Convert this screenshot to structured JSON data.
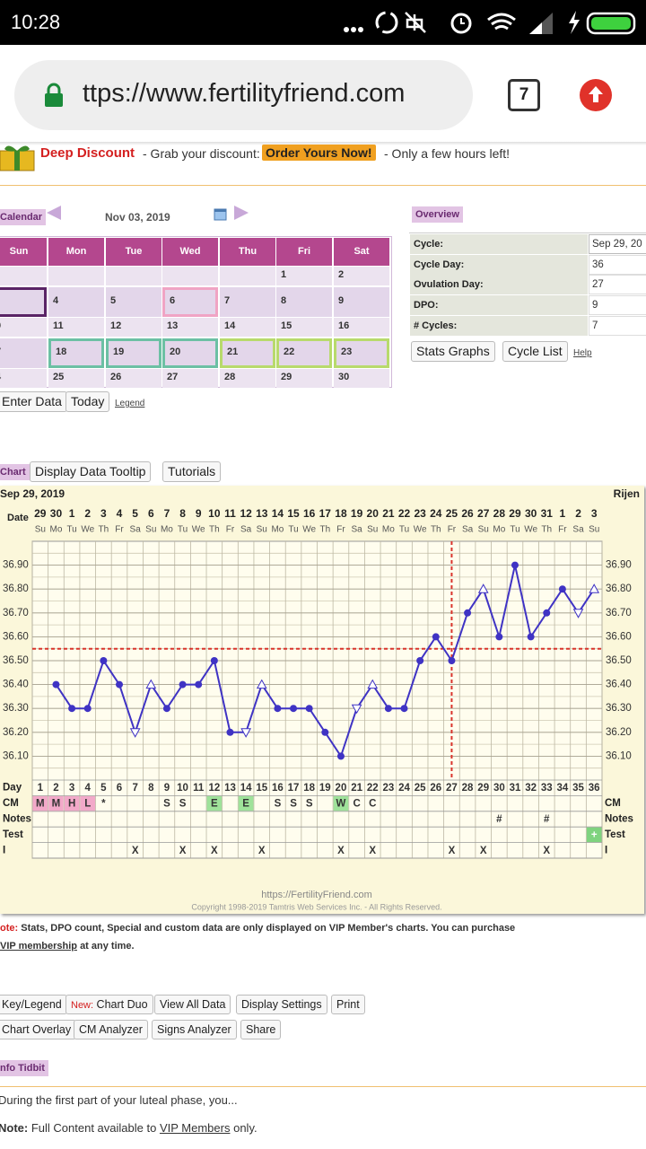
{
  "status_bar": {
    "time": "10:28"
  },
  "browser": {
    "url": "ttps://www.fertilityfriend.com",
    "tab_count": "7"
  },
  "banner": {
    "headline": "Deep Discount",
    "text": "- Grab your discount:",
    "button": "Order Yours Now!",
    "tail": "- Only a few hours left!"
  },
  "calendar": {
    "tab": "Calendar",
    "date": "Nov 03, 2019",
    "weekdays": [
      "Sun",
      "Mon",
      "Tue",
      "Wed",
      "Thu",
      "Fri",
      "Sat"
    ],
    "rows": [
      [
        null,
        null,
        null,
        null,
        null,
        "1",
        "2"
      ],
      [
        null,
        "4",
        "5",
        "6",
        "7",
        "8",
        "9"
      ],
      [
        "0",
        "11",
        "12",
        "13",
        "14",
        "15",
        "16"
      ],
      [
        "7",
        "18",
        "19",
        "20",
        "21",
        "22",
        "23"
      ],
      [
        "4",
        "25",
        "26",
        "27",
        "28",
        "29",
        "30"
      ]
    ],
    "buttons": [
      "Enter Data",
      "Today"
    ],
    "legend": "Legend"
  },
  "overview": {
    "tab": "Overview",
    "rows": [
      [
        "Cycle:",
        "Sep 29, 20"
      ],
      [
        "Cycle Day:",
        "36"
      ],
      [
        "Ovulation Day:",
        "27"
      ],
      [
        "DPO:",
        "9"
      ],
      [
        "# Cycles:",
        "7"
      ]
    ],
    "buttons": [
      "Stats Graphs",
      "Cycle List"
    ],
    "help": "Help"
  },
  "chart_toolbar": {
    "tab": "Chart",
    "buttons": [
      "Display Data Tooltip",
      "Tutorials"
    ]
  },
  "chart_data": {
    "type": "line",
    "title": "Sep 29, 2019",
    "location": "Rijen",
    "date_label": "Date",
    "dates": [
      29,
      30,
      1,
      2,
      3,
      4,
      5,
      6,
      7,
      8,
      9,
      10,
      11,
      12,
      13,
      14,
      15,
      16,
      17,
      18,
      19,
      20,
      21,
      22,
      23,
      24,
      25,
      26,
      27,
      28,
      29,
      30,
      31,
      1,
      2,
      3
    ],
    "weekdays": [
      "Su",
      "Mo",
      "Tu",
      "We",
      "Th",
      "Fr",
      "Sa",
      "Su",
      "Mo",
      "Tu",
      "We",
      "Th",
      "Fr",
      "Sa",
      "Su",
      "Mo",
      "Tu",
      "We",
      "Th",
      "Fr",
      "Sa",
      "Su",
      "Mo",
      "Tu",
      "We",
      "Th",
      "Fr",
      "Sa",
      "Su",
      "Mo",
      "Tu",
      "We",
      "Th",
      "Fr",
      "Sa",
      "Su"
    ],
    "categories": [
      1,
      2,
      3,
      4,
      5,
      6,
      7,
      8,
      9,
      10,
      11,
      12,
      13,
      14,
      15,
      16,
      17,
      18,
      19,
      20,
      21,
      22,
      23,
      24,
      25,
      26,
      27,
      28,
      29,
      30,
      31,
      32,
      33,
      34,
      35,
      36
    ],
    "values": [
      null,
      36.4,
      36.3,
      36.3,
      36.5,
      36.4,
      36.2,
      36.4,
      36.3,
      36.4,
      36.4,
      36.5,
      36.2,
      36.2,
      36.4,
      36.3,
      36.3,
      36.3,
      36.2,
      36.1,
      36.3,
      36.4,
      36.3,
      36.3,
      36.5,
      36.6,
      36.5,
      36.7,
      36.8,
      36.6,
      36.9,
      36.6,
      36.7,
      36.8,
      36.7,
      36.8
    ],
    "hollow": [
      false,
      false,
      false,
      false,
      false,
      false,
      true,
      true,
      false,
      false,
      false,
      false,
      false,
      true,
      true,
      false,
      false,
      false,
      false,
      false,
      true,
      true,
      false,
      false,
      false,
      false,
      false,
      false,
      true,
      false,
      false,
      false,
      false,
      false,
      true,
      true
    ],
    "color": "#3f33c4",
    "coverline": 36.55,
    "ovulation_day": 27,
    "reference_color": "#d9342c",
    "ylim": [
      36.0,
      37.0
    ],
    "yticks": [
      {
        "value": 36.1,
        "label": "36.10"
      },
      {
        "value": 36.2,
        "label": "36.20"
      },
      {
        "value": 36.3,
        "label": "36.30"
      },
      {
        "value": 36.4,
        "label": "36.40"
      },
      {
        "value": 36.5,
        "label": "36.50"
      },
      {
        "value": 36.6,
        "label": "36.60"
      },
      {
        "value": 36.7,
        "label": "36.70"
      },
      {
        "value": 36.8,
        "label": "36.80"
      },
      {
        "value": 36.9,
        "label": "36.90"
      }
    ],
    "grid": true,
    "row_labels": [
      "Day",
      "CM",
      "Notes",
      "Test",
      "I"
    ],
    "cm": [
      "M",
      "M",
      "H",
      "L",
      "*",
      null,
      null,
      null,
      "S",
      "S",
      null,
      "E",
      null,
      "E",
      null,
      "S",
      "S",
      "S",
      null,
      "W",
      "C",
      "C",
      null,
      null,
      null,
      null,
      null,
      null,
      null,
      null,
      null,
      null,
      null,
      null,
      null,
      null
    ],
    "cm_fill": [
      "#f2a9c9",
      "#f2a9c9",
      "#f2a9c9",
      "#f2a9c9",
      null,
      null,
      null,
      null,
      null,
      null,
      null,
      "#9fe29a",
      null,
      "#9fe29a",
      null,
      null,
      null,
      null,
      null,
      "#9fe29a",
      null,
      null,
      null,
      null,
      null,
      null,
      null,
      null,
      null,
      null,
      null,
      null,
      null,
      null,
      null,
      null
    ],
    "notes": [
      null,
      null,
      null,
      null,
      null,
      null,
      null,
      null,
      null,
      null,
      null,
      null,
      null,
      null,
      null,
      null,
      null,
      null,
      null,
      null,
      null,
      null,
      null,
      null,
      null,
      null,
      null,
      null,
      null,
      "#",
      null,
      null,
      "#",
      null,
      null,
      null
    ],
    "test": [
      null,
      null,
      null,
      null,
      null,
      null,
      null,
      null,
      null,
      null,
      null,
      null,
      null,
      null,
      null,
      null,
      null,
      null,
      null,
      null,
      null,
      null,
      null,
      null,
      null,
      null,
      null,
      null,
      null,
      null,
      null,
      null,
      null,
      null,
      null,
      "+"
    ],
    "test_fill": [
      null,
      null,
      null,
      null,
      null,
      null,
      null,
      null,
      null,
      null,
      null,
      null,
      null,
      null,
      null,
      null,
      null,
      null,
      null,
      null,
      null,
      null,
      null,
      null,
      null,
      null,
      null,
      null,
      null,
      null,
      null,
      null,
      null,
      null,
      null,
      "#7fd37f"
    ],
    "intercourse": [
      null,
      null,
      null,
      null,
      null,
      null,
      "X",
      null,
      null,
      "X",
      null,
      "X",
      null,
      null,
      "X",
      null,
      null,
      null,
      null,
      "X",
      null,
      "X",
      null,
      null,
      null,
      null,
      "X",
      null,
      "X",
      null,
      null,
      null,
      "X",
      null,
      null,
      null
    ],
    "source": "https://FertilityFriend.com",
    "copyright": "Copyright 1998-2019 Tamtris Web Services Inc. - All Rights Reserved."
  },
  "vip_note": {
    "label": "ote:",
    "text": "Stats, DPO count, Special and custom data are only displayed on VIP Member's charts. You can purchase",
    "link": "VIP membership",
    "tail": "at any time."
  },
  "actions": {
    "row1": [
      "Key/Legend",
      "Chart Duo",
      "View All Data",
      "Display Settings",
      "Print"
    ],
    "new_label": "New:",
    "row2": [
      "Chart Overlay",
      "CM Analyzer",
      "Signs Analyzer",
      "Share"
    ]
  },
  "tidbit": {
    "tab": "nfo Tidbit",
    "text": "During the first part of your luteal phase, you...",
    "note_label": "Note:",
    "note_text": "Full Content available to",
    "note_link": "VIP Members",
    "note_tail": "only."
  }
}
